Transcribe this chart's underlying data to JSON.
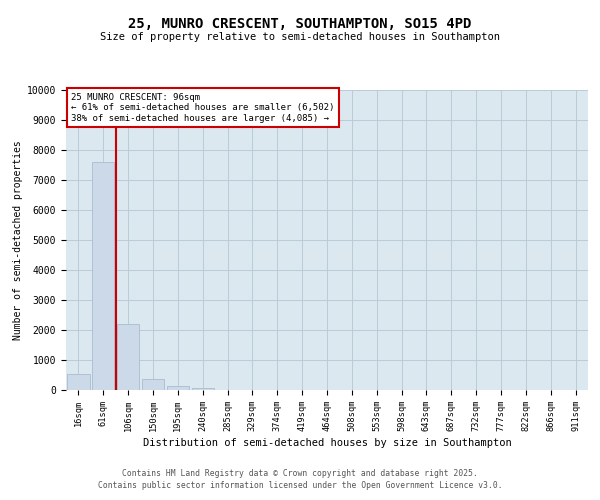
{
  "title": "25, MUNRO CRESCENT, SOUTHAMPTON, SO15 4PD",
  "subtitle": "Size of property relative to semi-detached houses in Southampton",
  "xlabel": "Distribution of semi-detached houses by size in Southampton",
  "ylabel": "Number of semi-detached properties",
  "categories": [
    "16sqm",
    "61sqm",
    "106sqm",
    "150sqm",
    "195sqm",
    "240sqm",
    "285sqm",
    "329sqm",
    "374sqm",
    "419sqm",
    "464sqm",
    "508sqm",
    "553sqm",
    "598sqm",
    "643sqm",
    "687sqm",
    "732sqm",
    "777sqm",
    "822sqm",
    "866sqm",
    "911sqm"
  ],
  "values": [
    520,
    7600,
    2200,
    370,
    130,
    80,
    0,
    0,
    0,
    0,
    0,
    0,
    0,
    0,
    0,
    0,
    0,
    0,
    0,
    0,
    0
  ],
  "bar_color": "#ccd9e8",
  "bar_edge_color": "#a8bdd0",
  "property_label": "25 MUNRO CRESCENT: 96sqm",
  "annotation_line1": "← 61% of semi-detached houses are smaller (6,502)",
  "annotation_line2": "38% of semi-detached houses are larger (4,085) →",
  "annotation_box_color": "#ffffff",
  "annotation_box_edge": "#cc0000",
  "red_line_color": "#cc0000",
  "ylim": [
    0,
    10000
  ],
  "yticks": [
    0,
    1000,
    2000,
    3000,
    4000,
    5000,
    6000,
    7000,
    8000,
    9000,
    10000
  ],
  "footer1": "Contains HM Land Registry data © Crown copyright and database right 2025.",
  "footer2": "Contains public sector information licensed under the Open Government Licence v3.0.",
  "background_color": "#ffffff",
  "plot_bg_color": "#dce8f0",
  "grid_color": "#b8ccd8"
}
